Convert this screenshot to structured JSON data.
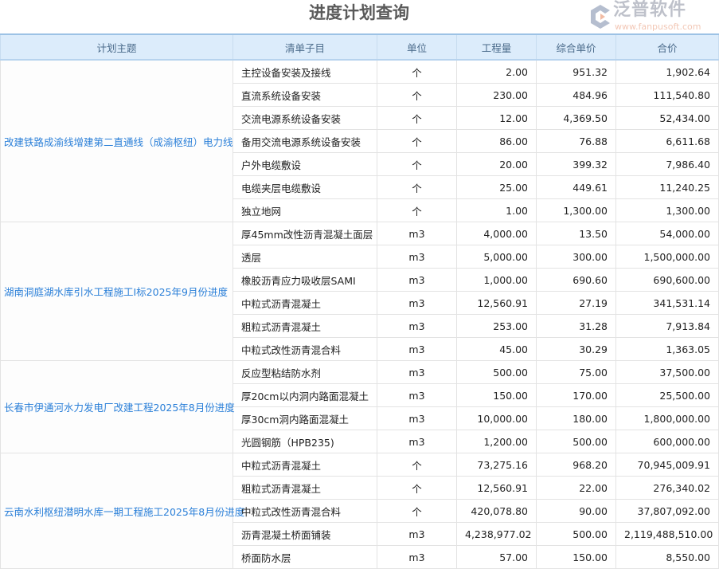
{
  "title": "进度计划查询",
  "columns": [
    "计划主题",
    "清单子目",
    "单位",
    "工程量",
    "综合单价",
    "合价"
  ],
  "groups": [
    {
      "plan": "改建铁路成渝线增建第二直通线（成渝枢纽）电力线",
      "rows": [
        [
          "主控设备安装及接线",
          "个",
          "2.00",
          "951.32",
          "1,902.64"
        ],
        [
          "直流系统设备安装",
          "个",
          "230.00",
          "484.96",
          "111,540.80"
        ],
        [
          "交流电源系统设备安装",
          "个",
          "12.00",
          "4,369.50",
          "52,434.00"
        ],
        [
          "备用交流电源系统设备安装",
          "个",
          "86.00",
          "76.88",
          "6,611.68"
        ],
        [
          "户外电缆敷设",
          "个",
          "20.00",
          "399.32",
          "7,986.40"
        ],
        [
          "电缆夹层电缆敷设",
          "个",
          "25.00",
          "449.61",
          "11,240.25"
        ],
        [
          "独立地网",
          "个",
          "1.00",
          "1,300.00",
          "1,300.00"
        ]
      ]
    },
    {
      "plan": "湖南洞庭湖水库引水工程施工I标2025年9月份进度",
      "rows": [
        [
          "厚45mm改性沥青混凝土面层",
          "m3",
          "4,000.00",
          "13.50",
          "54,000.00"
        ],
        [
          "透层",
          "m3",
          "5,000.00",
          "300.00",
          "1,500,000.00"
        ],
        [
          "橡胶沥青应力吸收层SAMI",
          "m3",
          "1,000.00",
          "690.60",
          "690,600.00"
        ],
        [
          "中粒式沥青混凝土",
          "m3",
          "12,560.91",
          "27.19",
          "341,531.14"
        ],
        [
          "粗粒式沥青混凝土",
          "m3",
          "253.00",
          "31.28",
          "7,913.84"
        ],
        [
          "中粒式改性沥青混合料",
          "m3",
          "45.00",
          "30.29",
          "1,363.05"
        ]
      ]
    },
    {
      "plan": "长春市伊通河水力发电厂改建工程2025年8月份进度",
      "rows": [
        [
          "反应型粘结防水剂",
          "m3",
          "500.00",
          "75.00",
          "37,500.00"
        ],
        [
          "厚20cm以内洞内路面混凝土",
          "m3",
          "150.00",
          "170.00",
          "25,500.00"
        ],
        [
          "厚30cm洞内路面混凝土",
          "m3",
          "10,000.00",
          "180.00",
          "1,800,000.00"
        ],
        [
          "光圆钢筋（HPB235)",
          "m3",
          "1,200.00",
          "500.00",
          "600,000.00"
        ]
      ]
    },
    {
      "plan": "云南水利枢纽潜明水库一期工程施工2025年8月份进度",
      "rows": [
        [
          "中粒式沥青混凝土",
          "个",
          "73,275.16",
          "968.20",
          "70,945,009.91"
        ],
        [
          "粗粒式沥青混凝土",
          "个",
          "12,560.91",
          "22.00",
          "276,340.02"
        ],
        [
          "中粒式改性沥青混合料",
          "个",
          "420,078.80",
          "90.00",
          "37,807,092.00"
        ],
        [
          "沥青混凝土桥面铺装",
          "m3",
          "4,238,977.02",
          "500.00",
          "2,119,488,510.00"
        ],
        [
          "桥面防水层",
          "m3",
          "57.00",
          "150.00",
          "8,550.00"
        ]
      ]
    }
  ],
  "watermark": {
    "name": "泛普软件",
    "url": "www.fanpusoft.com"
  }
}
